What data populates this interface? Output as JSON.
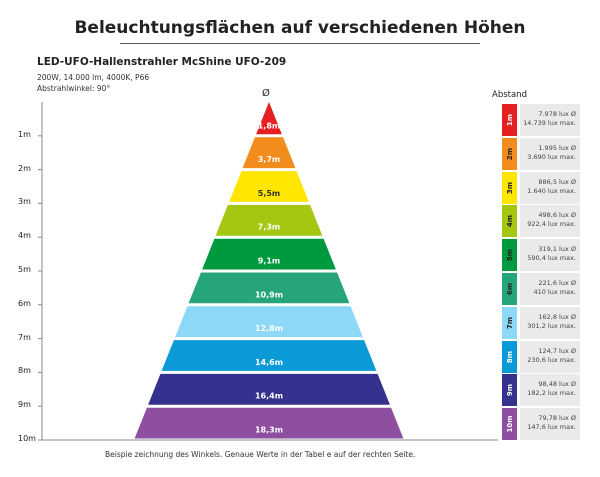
{
  "header": {
    "title": "Beleuchtungsflächen auf verschiedenen Höhen",
    "product": "LED-UFO-Hallenstrahler McShine UFO-209",
    "spec_line1": "200W, 14.000 lm, 4000K,  P66",
    "spec_line2": "Abstrahlwinkel: 90°",
    "diameter_symbol": "Ø",
    "abstand_label": "Abstand"
  },
  "footer": {
    "note": "Beispie zeichnung des Winkels. Genaue Werte in der Tabel e auf der rechten Seite."
  },
  "levels": [
    {
      "height": "1m",
      "diameter": "1,8m",
      "lux_avg": "7.978 lux Ø",
      "lux_max": "14.739 lux max.",
      "color": "#e62021",
      "chip_text_color": "#ffffff"
    },
    {
      "height": "2m",
      "diameter": "3,7m",
      "lux_avg": "1.995 lux Ø",
      "lux_max": "3.690 lux max.",
      "color": "#f28c1c",
      "chip_text_color": "#222222"
    },
    {
      "height": "3m",
      "diameter": "5,5m",
      "lux_avg": "886,5 lux Ø",
      "lux_max": "1.640 lux max.",
      "color": "#ffe600",
      "chip_text_color": "#222222"
    },
    {
      "height": "4m",
      "diameter": "7,3m",
      "lux_avg": "498,6 lux Ø",
      "lux_max": "922,4 lux max.",
      "color": "#a6c712",
      "chip_text_color": "#222222"
    },
    {
      "height": "5m",
      "diameter": "9,1m",
      "lux_avg": "319,1 lux Ø",
      "lux_max": "590,4 lux max.",
      "color": "#009a3e",
      "chip_text_color": "#222222"
    },
    {
      "height": "6m",
      "diameter": "10,9m",
      "lux_avg": "221,6 lux Ø",
      "lux_max": "410 lux max.",
      "color": "#27a57a",
      "chip_text_color": "#222222"
    },
    {
      "height": "7m",
      "diameter": "12,8m",
      "lux_avg": "162,8 lux Ø",
      "lux_max": "301,2 lux max.",
      "color": "#8dd7f7",
      "chip_text_color": "#222222"
    },
    {
      "height": "8m",
      "diameter": "14,6m",
      "lux_avg": "124,7 lux Ø",
      "lux_max": "230,6 lux max.",
      "color": "#0a9ad8",
      "chip_text_color": "#ffffff"
    },
    {
      "height": "9m",
      "diameter": "16,4m",
      "lux_avg": "98,48 lux Ø",
      "lux_max": "182,2 lux max.",
      "color": "#34328e",
      "chip_text_color": "#ffffff"
    },
    {
      "height": "10m",
      "diameter": "18,3m",
      "lux_avg": "79,78 lux Ø",
      "lux_max": "147,6 lux max.",
      "color": "#8e4fa1",
      "chip_text_color": "#ffffff"
    }
  ]
}
